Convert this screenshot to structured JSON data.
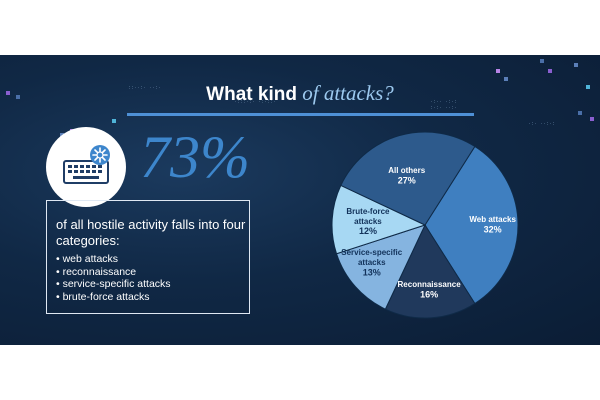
{
  "title": {
    "part1": "What kind",
    "part2": "of attacks?"
  },
  "headline": {
    "percent": "73%",
    "lead": "of all hostile activity falls into four categories:"
  },
  "categories": [
    "web attacks",
    "reconnaissance",
    "service-specific attacks",
    "brute-force attacks"
  ],
  "icon": "keyboard-with-gear-icon",
  "colors": {
    "accent": "#4e90d6",
    "big_number": "#3d86cc",
    "background": "#102845"
  },
  "chart_data": {
    "type": "pie",
    "slices": [
      {
        "label": "Web attacks",
        "value": 32,
        "display": "32%",
        "color": "#3f7fc0"
      },
      {
        "label": "Reconnaissance",
        "value": 16,
        "display": "16%",
        "color": "#20395c"
      },
      {
        "label": "Service-specific attacks",
        "value": 13,
        "display": "13%",
        "color": "#85b4e0"
      },
      {
        "label": "Brute-force attacks",
        "value": 12,
        "display": "12%",
        "color": "#a7d8f3"
      },
      {
        "label": "All others",
        "value": 27,
        "display": "27%",
        "color": "#2d5a8c"
      }
    ]
  }
}
